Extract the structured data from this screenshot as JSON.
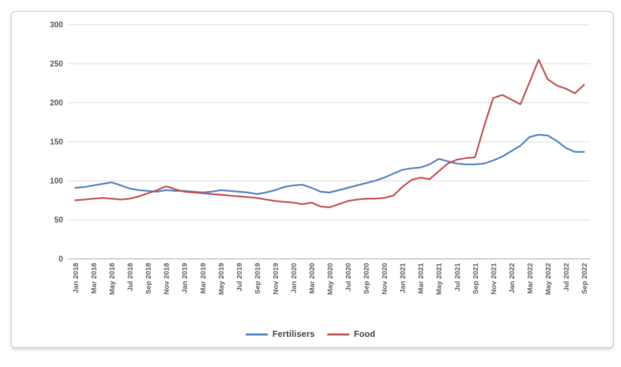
{
  "chart_data": {
    "type": "line",
    "title": "",
    "xlabel": "",
    "ylabel": "",
    "ylim": [
      0,
      300
    ],
    "y_ticks": [
      0,
      50,
      100,
      150,
      200,
      250,
      300
    ],
    "grid": true,
    "legend_position": "bottom",
    "points_per_tick": 2,
    "x_tick_labels": [
      "Jan 2018",
      "Mar 2018",
      "May 2018",
      "Jul 2018",
      "Sep 2018",
      "Nov 2018",
      "Jan 2019",
      "Mar 2019",
      "May 2019",
      "Jul 2019",
      "Sep 2019",
      "Nov 2019",
      "Jan 2020",
      "Mar 2020",
      "May 2020",
      "Jul 2020",
      "Sep 2020",
      "Nov 2020",
      "Jan 2021",
      "Mar 2021",
      "May 2021",
      "Jul 2021",
      "Sep 2021",
      "Nov 2021",
      "Jan 2022",
      "Mar 2022",
      "May 2022",
      "Jul 2022",
      "Sep 2022"
    ],
    "series": [
      {
        "name": "Fertilisers",
        "color": "#4F81BD",
        "values": [
          91,
          92,
          94,
          96,
          98,
          94,
          90,
          88,
          87,
          86,
          88,
          87,
          87,
          86,
          85,
          86,
          88,
          87,
          86,
          85,
          83,
          85,
          88,
          92,
          94,
          95,
          91,
          86,
          85,
          88,
          91,
          94,
          97,
          100,
          104,
          109,
          114,
          116,
          117,
          121,
          128,
          125,
          122,
          121,
          121,
          122,
          126,
          131,
          138,
          145,
          156,
          159,
          158,
          151,
          142,
          137,
          137
        ]
      },
      {
        "name": "Food",
        "color": "#C0504D",
        "values": [
          75,
          76,
          77,
          78,
          77,
          76,
          77,
          80,
          84,
          88,
          93,
          89,
          86,
          85,
          84,
          83,
          82,
          81,
          80,
          79,
          78,
          76,
          74,
          73,
          72,
          70,
          72,
          67,
          66,
          70,
          74,
          76,
          77,
          77,
          78,
          81,
          92,
          101,
          104,
          102,
          112,
          122,
          127,
          129,
          130,
          170,
          206,
          210,
          204,
          198,
          226,
          255,
          230,
          222,
          218,
          212,
          223
        ]
      }
    ]
  },
  "style": {
    "axis_text_color": "#595959",
    "gridline_color": "#dadada",
    "axis_line_color": "#9e9e9e"
  }
}
